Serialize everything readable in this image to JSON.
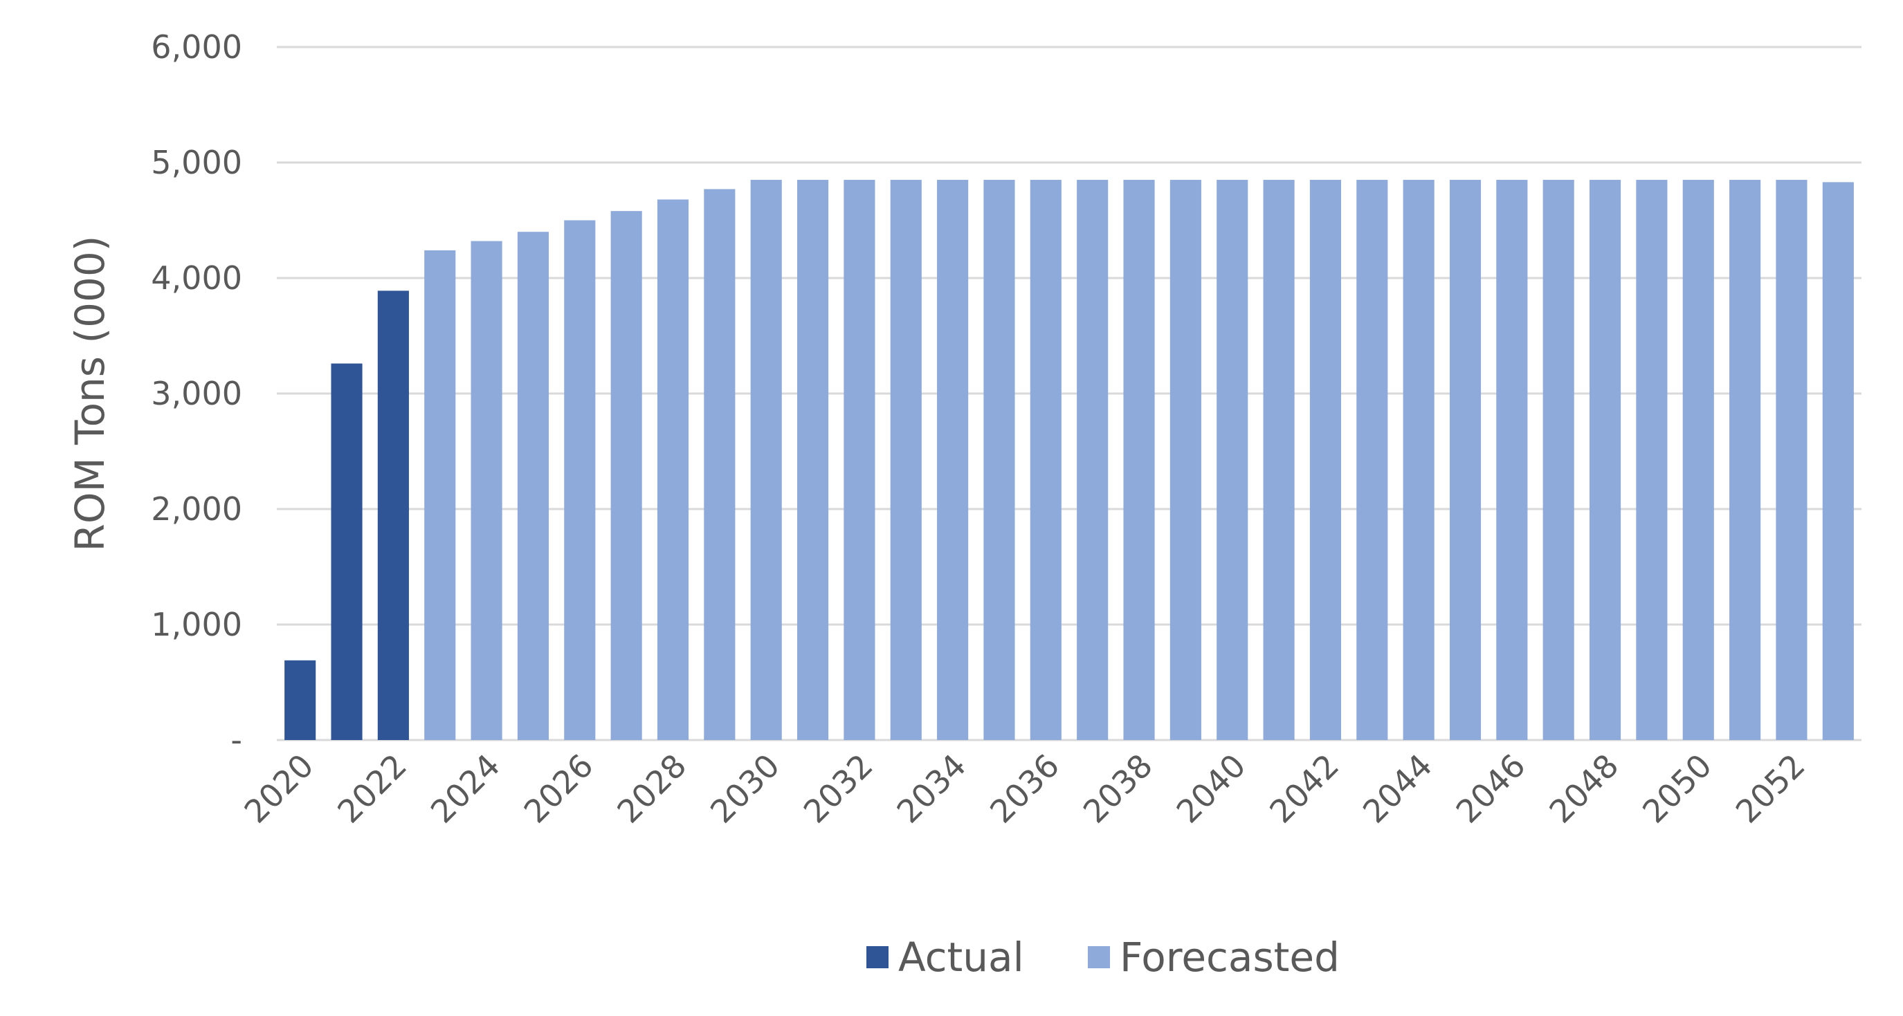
{
  "chart_data": {
    "type": "bar",
    "ylabel": "ROM Tons (000)",
    "ylim": [
      0,
      6000
    ],
    "yticks": [
      {
        "value": 0,
        "label": "-"
      },
      {
        "value": 1000,
        "label": "1,000"
      },
      {
        "value": 2000,
        "label": "2,000"
      },
      {
        "value": 3000,
        "label": "3,000"
      },
      {
        "value": 4000,
        "label": "4,000"
      },
      {
        "value": 5000,
        "label": "5,000"
      },
      {
        "value": 6000,
        "label": "6,000"
      }
    ],
    "grid": true,
    "legend_position": "bottom",
    "xtick_labels": [
      "2020",
      "2022",
      "2024",
      "2026",
      "2028",
      "2030",
      "2032",
      "2034",
      "2036",
      "2038",
      "2040",
      "2042",
      "2044",
      "2046",
      "2048",
      "2050",
      "2052"
    ],
    "categories": [
      "2020",
      "2021",
      "2022",
      "2023",
      "2024",
      "2025",
      "2026",
      "2027",
      "2028",
      "2029",
      "2030",
      "2031",
      "2032",
      "2033",
      "2034",
      "2035",
      "2036",
      "2037",
      "2038",
      "2039",
      "2040",
      "2041",
      "2042",
      "2043",
      "2044",
      "2045",
      "2046",
      "2047",
      "2048",
      "2049",
      "2050",
      "2051",
      "2052",
      "2053"
    ],
    "series": [
      {
        "name": "Actual",
        "color": "#2f5597",
        "values": [
          690,
          3260,
          3890,
          null,
          null,
          null,
          null,
          null,
          null,
          null,
          null,
          null,
          null,
          null,
          null,
          null,
          null,
          null,
          null,
          null,
          null,
          null,
          null,
          null,
          null,
          null,
          null,
          null,
          null,
          null,
          null,
          null,
          null,
          null
        ]
      },
      {
        "name": "Forecasted",
        "color": "#8eaadb",
        "values": [
          null,
          null,
          null,
          4240,
          4320,
          4400,
          4500,
          4580,
          4680,
          4770,
          4850,
          4850,
          4850,
          4850,
          4850,
          4850,
          4850,
          4850,
          4850,
          4850,
          4850,
          4850,
          4850,
          4850,
          4850,
          4850,
          4850,
          4850,
          4850,
          4850,
          4850,
          4850,
          4850,
          4830
        ]
      }
    ]
  }
}
